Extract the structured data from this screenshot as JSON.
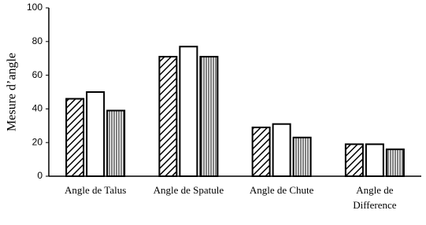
{
  "chart_data": {
    "type": "bar",
    "y_label": "Mesure d’angle",
    "categories": [
      [
        "Angle de Talus"
      ],
      [
        "Angle de Spatule"
      ],
      [
        "Angle de Chute"
      ],
      [
        "Angle de",
        "Difference"
      ]
    ],
    "series": [
      {
        "pattern": "diagonal",
        "color": "#000000",
        "values": [
          46,
          71,
          29,
          19
        ]
      },
      {
        "pattern": "none",
        "color": "#000000",
        "values": [
          50,
          77,
          31,
          19
        ]
      },
      {
        "pattern": "vertical",
        "color": "#000000",
        "values": [
          39,
          71,
          23,
          16
        ]
      }
    ],
    "ylim": [
      0,
      100
    ],
    "yticks": [
      0,
      20,
      40,
      60,
      80,
      100
    ],
    "grid": false
  }
}
